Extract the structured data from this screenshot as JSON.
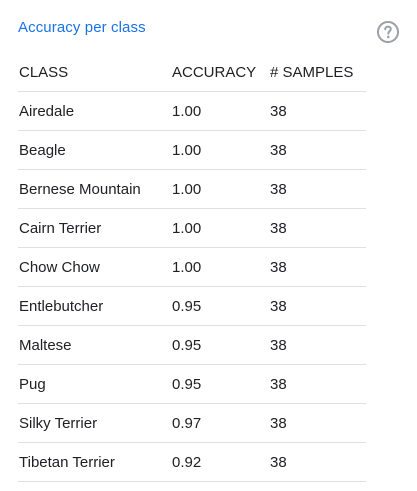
{
  "panel": {
    "title": "Accuracy per class",
    "help_icon": "help-circle-icon",
    "accent_color": "#1a73e8"
  },
  "table": {
    "headers": {
      "class": "CLASS",
      "accuracy": "ACCURACY",
      "samples": "# SAMPLES"
    },
    "rows": [
      {
        "class": "Airedale",
        "accuracy": "1.00",
        "samples": "38"
      },
      {
        "class": "Beagle",
        "accuracy": "1.00",
        "samples": "38"
      },
      {
        "class": "Bernese Mountain",
        "accuracy": "1.00",
        "samples": "38"
      },
      {
        "class": "Cairn Terrier",
        "accuracy": "1.00",
        "samples": "38"
      },
      {
        "class": "Chow Chow",
        "accuracy": "1.00",
        "samples": "38"
      },
      {
        "class": "Entlebutcher",
        "accuracy": "0.95",
        "samples": "38"
      },
      {
        "class": "Maltese",
        "accuracy": "0.95",
        "samples": "38"
      },
      {
        "class": "Pug",
        "accuracy": "0.95",
        "samples": "38"
      },
      {
        "class": "Silky Terrier",
        "accuracy": "0.97",
        "samples": "38"
      },
      {
        "class": "Tibetan Terrier",
        "accuracy": "0.92",
        "samples": "38"
      }
    ]
  }
}
